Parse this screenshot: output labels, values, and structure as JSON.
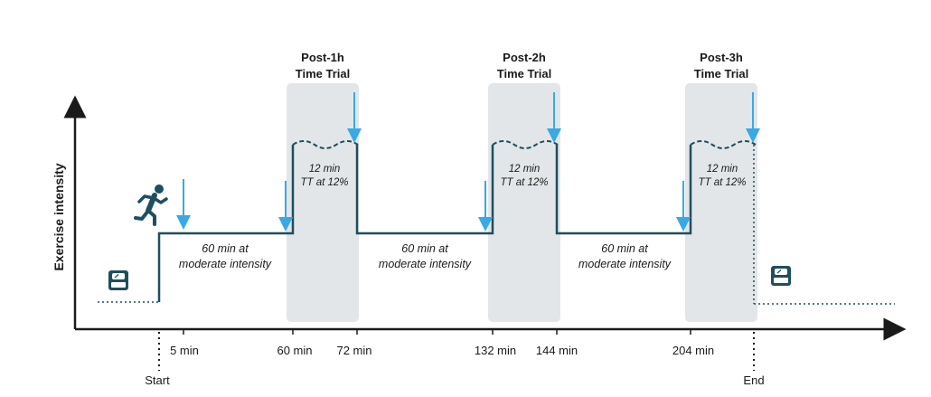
{
  "colors": {
    "line": "#1f4e5f",
    "panel": "#e3e6e8",
    "arrow": "#39a9e6",
    "axis": "#1a1a1a"
  },
  "axis": {
    "y_label": "Exercise intensity"
  },
  "phases": [
    {
      "text_line1": "60 min at",
      "text_line2": "moderate intensity"
    },
    {
      "text_line1": "60 min at",
      "text_line2": "moderate intensity"
    },
    {
      "text_line1": "60 min at",
      "text_line2": "moderate intensity"
    }
  ],
  "trials": [
    {
      "title_line1": "Post-1h",
      "title_line2": "Time Trial",
      "text_line1": "12 min",
      "text_line2": "TT at 12%"
    },
    {
      "title_line1": "Post-2h",
      "title_line2": "Time Trial",
      "text_line1": "12 min",
      "text_line2": "TT at 12%"
    },
    {
      "title_line1": "Post-3h",
      "title_line2": "Time Trial",
      "text_line1": "12 min",
      "text_line2": "TT at 12%"
    }
  ],
  "ticks": {
    "start": "Start",
    "five_min": "5 min",
    "sixty_min": "60 min",
    "seventytwo_min": "72 min",
    "onethirtytwo_min": "132 min",
    "onefortyfour_min": "144 min",
    "twohundredfour_min": "204 min",
    "end": "End"
  },
  "icons": {
    "runner": "runner-icon",
    "scale_start": "scale-icon",
    "scale_end": "scale-icon",
    "sample_arrow": "down-arrow-icon"
  }
}
